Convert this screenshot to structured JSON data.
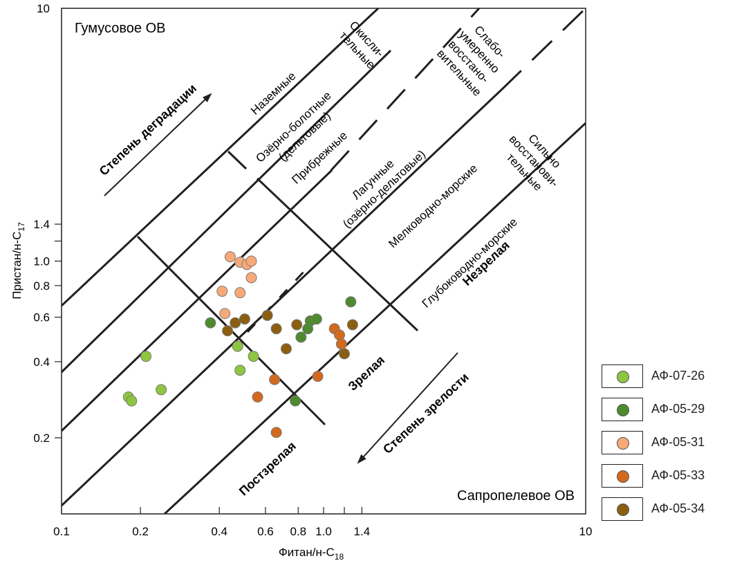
{
  "chart_data": {
    "type": "scatter",
    "title": "",
    "xlabel": "Фитан/н-C",
    "xlabel_sub": "18",
    "ylabel": "Пристан/н-C",
    "ylabel_sub": "17",
    "xscale": "log",
    "yscale": "log",
    "xlim": [
      0.1,
      10
    ],
    "ylim": [
      0.1,
      10
    ],
    "x_ticks": [
      {
        "v": 0.1,
        "label": "0.1"
      },
      {
        "v": 0.2,
        "label": "0.2"
      },
      {
        "v": 0.4,
        "label": "0.4"
      },
      {
        "v": 0.6,
        "label": "0.6"
      },
      {
        "v": 0.8,
        "label": "0.8"
      },
      {
        "v": 1.0,
        "label": "1.0"
      },
      {
        "v": 1.2,
        "label": ""
      },
      {
        "v": 1.4,
        "label": "1.4"
      },
      {
        "v": 10,
        "label": "10"
      }
    ],
    "y_ticks": [
      {
        "v": 0.2,
        "label": "0.2"
      },
      {
        "v": 0.4,
        "label": "0.4"
      },
      {
        "v": 0.6,
        "label": "0.6"
      },
      {
        "v": 0.8,
        "label": "0.8"
      },
      {
        "v": 1.0,
        "label": "1.0"
      },
      {
        "v": 1.2,
        "label": ""
      },
      {
        "v": 1.4,
        "label": "1.4"
      },
      {
        "v": 10,
        "label": "10"
      }
    ],
    "legend_position": "right, outside plot",
    "series": [
      {
        "name": "АФ-07-26",
        "color": "#8dc63f",
        "points": [
          [
            0.18,
            0.29
          ],
          [
            0.185,
            0.28
          ],
          [
            0.21,
            0.42
          ],
          [
            0.24,
            0.31
          ],
          [
            0.47,
            0.46
          ],
          [
            0.48,
            0.37
          ],
          [
            0.54,
            0.42
          ]
        ]
      },
      {
        "name": "АФ-05-29",
        "color": "#4e8a2e",
        "points": [
          [
            0.37,
            0.57
          ],
          [
            0.78,
            0.28
          ],
          [
            0.82,
            0.5
          ],
          [
            0.87,
            0.54
          ],
          [
            0.89,
            0.58
          ],
          [
            0.94,
            0.59
          ],
          [
            1.27,
            0.69
          ]
        ]
      },
      {
        "name": "АФ-05-31",
        "color": "#f7a978",
        "points": [
          [
            0.44,
            1.04
          ],
          [
            0.48,
            0.99
          ],
          [
            0.51,
            0.97
          ],
          [
            0.53,
            1.0
          ],
          [
            0.53,
            0.86
          ],
          [
            0.41,
            0.76
          ],
          [
            0.48,
            0.75
          ],
          [
            0.42,
            0.62
          ]
        ]
      },
      {
        "name": "АФ-05-33",
        "color": "#d2691e",
        "points": [
          [
            0.56,
            0.29
          ],
          [
            0.65,
            0.34
          ],
          [
            0.66,
            0.21
          ],
          [
            0.95,
            0.35
          ],
          [
            1.1,
            0.54
          ],
          [
            1.15,
            0.51
          ],
          [
            1.17,
            0.47
          ]
        ]
      },
      {
        "name": "АФ-05-34",
        "color": "#8b5e10",
        "points": [
          [
            0.43,
            0.53
          ],
          [
            0.46,
            0.57
          ],
          [
            0.5,
            0.59
          ],
          [
            0.61,
            0.61
          ],
          [
            0.66,
            0.54
          ],
          [
            0.72,
            0.45
          ],
          [
            0.79,
            0.56
          ],
          [
            1.2,
            0.43
          ],
          [
            1.29,
            0.56
          ]
        ]
      }
    ],
    "corner_labels": {
      "top_left": "Гумусовое ОВ",
      "bottom_right": "Сапропелевое ОВ"
    },
    "environment_labels": [
      [
        "Наземные"
      ],
      [
        "Озёрно-болотные",
        "(дельтовые)"
      ],
      [
        "Прибрежные"
      ],
      [
        "Лагунные",
        "(озёрно-дельтовые)"
      ],
      [
        "Мелководно-морские"
      ],
      [
        "Глубоководно-морские"
      ]
    ],
    "redox_labels": [
      [
        "Окисли-",
        "тельные"
      ],
      [
        "Слабо-",
        "умеренно",
        "восстано-",
        "вительные"
      ],
      [
        "Сильно",
        "восстанови-",
        "тельные"
      ]
    ],
    "maturity_labels": {
      "immature": "Незрелая",
      "mature": "Зрелая",
      "postmature": "Постзрелая"
    },
    "arrows": {
      "degradation": "Степень деградации",
      "maturity": "Степень зрелости"
    }
  }
}
